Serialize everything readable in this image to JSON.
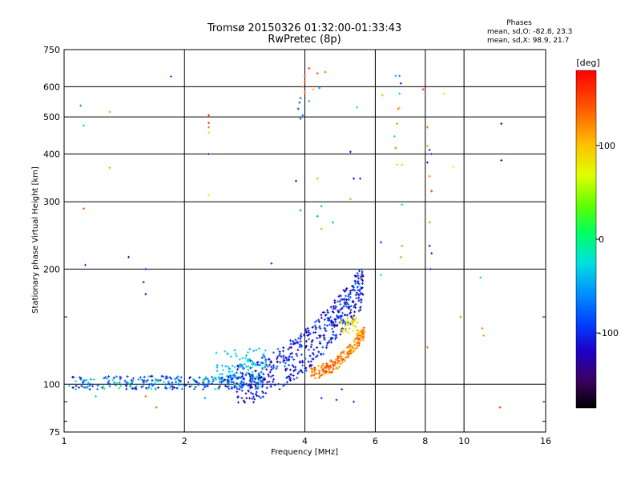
{
  "chart_data": {
    "type": "scatter",
    "title": "Tromsø 20150326 01:32:00-01:33:43",
    "subtitle": "RwPretec (8p)",
    "xlabel": "Frequency [MHz]",
    "ylabel": "Stationary phase Virtual Height [km]",
    "xscale": "log2",
    "yscale": "log",
    "xlim": [
      1,
      16
    ],
    "ylim": [
      75,
      750
    ],
    "xticks": [
      1,
      2,
      4,
      6,
      8,
      10,
      16
    ],
    "yticks": [
      75,
      100,
      200,
      300,
      400,
      500,
      600,
      750
    ],
    "grid": true,
    "annotation": {
      "title": "Phases",
      "line1": "mean, sd,O: -82.8, 23.3",
      "line2": "mean, sd,X:  98.9, 21.7"
    },
    "colorbar": {
      "label": "[deg]",
      "range": [
        -180,
        180
      ],
      "ticks": [
        -100,
        0,
        100
      ]
    },
    "n_points": 1200,
    "points": [
      [
        1.1,
        535,
        -60
      ],
      [
        1.12,
        475,
        -30
      ],
      [
        1.12,
        288,
        140
      ],
      [
        1.13,
        205,
        -90
      ],
      [
        1.45,
        215,
        -120
      ],
      [
        1.6,
        200,
        -95
      ],
      [
        1.58,
        185,
        -110
      ],
      [
        1.6,
        172,
        -120
      ],
      [
        1.3,
        515,
        110
      ],
      [
        1.3,
        368,
        110
      ],
      [
        1.85,
        638,
        -80
      ],
      [
        2.3,
        505,
        160
      ],
      [
        2.3,
        482,
        160
      ],
      [
        2.3,
        470,
        130
      ],
      [
        2.3,
        455,
        60
      ],
      [
        2.3,
        400,
        -100
      ],
      [
        2.3,
        312,
        80
      ],
      [
        3.3,
        207,
        -90
      ],
      [
        3.8,
        340,
        -120
      ],
      [
        3.9,
        285,
        -60
      ],
      [
        4.0,
        640,
        140
      ],
      [
        4.1,
        670,
        160
      ],
      [
        4.3,
        650,
        150
      ],
      [
        4.5,
        655,
        130
      ],
      [
        4.0,
        618,
        150
      ],
      [
        3.95,
        600,
        130
      ],
      [
        4.0,
        580,
        130
      ],
      [
        4.2,
        590,
        100
      ],
      [
        4.35,
        595,
        -60
      ],
      [
        3.9,
        560,
        -70
      ],
      [
        3.88,
        545,
        -80
      ],
      [
        3.85,
        525,
        -90
      ],
      [
        3.95,
        505,
        -70
      ],
      [
        3.9,
        495,
        -80
      ],
      [
        4.1,
        550,
        -40
      ],
      [
        4.3,
        345,
        110
      ],
      [
        4.4,
        292,
        -50
      ],
      [
        4.4,
        255,
        110
      ],
      [
        4.7,
        265,
        -50
      ],
      [
        4.3,
        275,
        -60
      ],
      [
        5.2,
        305,
        110
      ],
      [
        5.3,
        345,
        -110
      ],
      [
        5.5,
        345,
        -100
      ],
      [
        5.2,
        405,
        -120
      ],
      [
        5.4,
        530,
        -10
      ],
      [
        6.25,
        570,
        40
      ],
      [
        6.75,
        640,
        -40
      ],
      [
        6.9,
        640,
        -60
      ],
      [
        6.95,
        612,
        -110
      ],
      [
        6.9,
        575,
        -30
      ],
      [
        6.9,
        530,
        80
      ],
      [
        6.85,
        525,
        130
      ],
      [
        6.8,
        480,
        120
      ],
      [
        6.7,
        445,
        -20
      ],
      [
        6.75,
        415,
        130
      ],
      [
        6.8,
        375,
        90
      ],
      [
        7.0,
        375,
        100
      ],
      [
        7.0,
        295,
        -30
      ],
      [
        7.0,
        230,
        120
      ],
      [
        6.95,
        215,
        120
      ],
      [
        6.2,
        235,
        -100
      ],
      [
        6.2,
        193,
        -30
      ],
      [
        7.9,
        590,
        160
      ],
      [
        8.1,
        470,
        130
      ],
      [
        8.1,
        420,
        110
      ],
      [
        8.2,
        410,
        -100
      ],
      [
        8.3,
        400,
        -100
      ],
      [
        8.1,
        380,
        -100
      ],
      [
        8.2,
        350,
        120
      ],
      [
        8.3,
        320,
        160
      ],
      [
        8.2,
        265,
        120
      ],
      [
        8.2,
        230,
        -120
      ],
      [
        8.3,
        220,
        -100
      ],
      [
        8.25,
        200,
        -95
      ],
      [
        8.1,
        125,
        130
      ],
      [
        8.9,
        575,
        60
      ],
      [
        9.4,
        370,
        70
      ],
      [
        9.8,
        150,
        120
      ],
      [
        11.0,
        190,
        -30
      ],
      [
        11.1,
        140,
        120
      ],
      [
        11.2,
        134,
        110
      ],
      [
        12.4,
        480,
        -120
      ],
      [
        12.4,
        385,
        -120
      ],
      [
        12.3,
        87,
        150
      ],
      [
        1.2,
        93,
        -30
      ],
      [
        1.6,
        93,
        130
      ],
      [
        4.4,
        92,
        -100
      ],
      [
        4.8,
        91,
        -100
      ],
      [
        5.3,
        90,
        -100
      ],
      [
        4.95,
        97,
        -100
      ],
      [
        3.25,
        105,
        -100
      ],
      [
        2.25,
        92,
        -60
      ],
      [
        1.7,
        87,
        130
      ],
      [
        1.07,
        97,
        -40
      ],
      [
        1.03,
        99,
        -20
      ]
    ]
  }
}
